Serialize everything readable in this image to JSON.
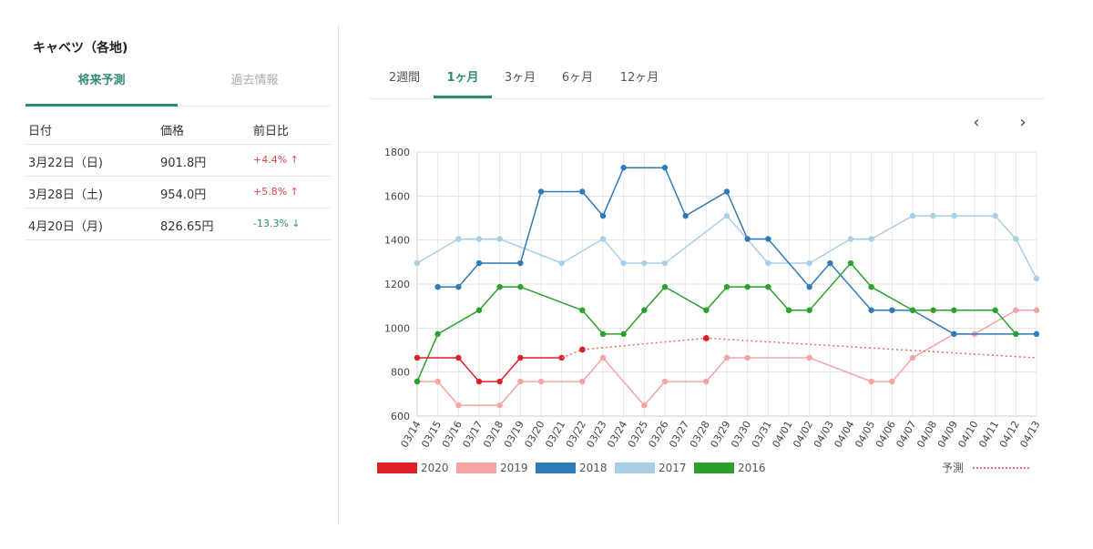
{
  "panel": {
    "title": "キャベツ（各地)",
    "tabs": [
      {
        "label": "将来予測",
        "active": true
      },
      {
        "label": "過去情報",
        "active": false
      }
    ],
    "table": {
      "headers": [
        "日付",
        "価格",
        "前日比"
      ],
      "rows": [
        {
          "date": "3月22日（日)",
          "price": "901.8円",
          "change": "+4.4%",
          "direction": "up"
        },
        {
          "date": "3月28日（土)",
          "price": "954.0円",
          "change": "+5.8%",
          "direction": "up"
        },
        {
          "date": "4月20日（月)",
          "price": "826.65円",
          "change": "-13.3%",
          "direction": "down"
        }
      ]
    }
  },
  "range_tabs": [
    {
      "label": "2週間",
      "active": false
    },
    {
      "label": "1ヶ月",
      "active": true
    },
    {
      "label": "3ヶ月",
      "active": false
    },
    {
      "label": "6ヶ月",
      "active": false
    },
    {
      "label": "12ヶ月",
      "active": false
    }
  ],
  "nav": {
    "prev": "‹",
    "next": "›"
  },
  "colors": {
    "accent": "#2e8b74",
    "up": "#e0454b",
    "down": "#2e8b74"
  },
  "chart_data": {
    "type": "line",
    "x": [
      "03/14",
      "03/15",
      "03/16",
      "03/17",
      "03/18",
      "03/19",
      "03/20",
      "03/21",
      "03/22",
      "03/23",
      "03/24",
      "03/25",
      "03/26",
      "03/27",
      "03/28",
      "03/29",
      "03/30",
      "03/31",
      "04/01",
      "04/02",
      "04/03",
      "04/04",
      "04/05",
      "04/06",
      "04/07",
      "04/08",
      "04/09",
      "04/10",
      "04/11",
      "04/12",
      "04/13"
    ],
    "ylim": [
      600,
      1800
    ],
    "yticks": [
      600,
      800,
      1000,
      1200,
      1400,
      1600,
      1800
    ],
    "grid": true,
    "legend": "bottom",
    "series": [
      {
        "name": "2017",
        "color": "#a9cfe6",
        "dots": true,
        "values": [
          1295,
          null,
          1405,
          1405,
          1405,
          null,
          null,
          1295,
          null,
          1405,
          1295,
          1295,
          1295,
          null,
          null,
          1510,
          null,
          1295,
          null,
          1295,
          null,
          1405,
          1405,
          null,
          1510,
          1510,
          1510,
          null,
          1510,
          1405,
          1225
        ]
      },
      {
        "name": "2019",
        "color": "#f5a3a3",
        "dots": true,
        "values": [
          757,
          757,
          649,
          null,
          649,
          757,
          757,
          null,
          757,
          865,
          null,
          649,
          757,
          null,
          757,
          865,
          865,
          null,
          null,
          865,
          null,
          null,
          757,
          757,
          865,
          null,
          973,
          973,
          null,
          1081,
          1081
        ]
      },
      {
        "name": "2018",
        "color": "#2f7ab8",
        "dots": true,
        "values": [
          null,
          1187,
          1187,
          1295,
          null,
          1295,
          1620,
          null,
          1620,
          1510,
          1729,
          null,
          1729,
          1510,
          null,
          1620,
          1405,
          1405,
          null,
          1187,
          1295,
          null,
          1081,
          1081,
          1081,
          null,
          973,
          null,
          null,
          973,
          973
        ]
      },
      {
        "name": "2016",
        "color": "#2ca02c",
        "dots": true,
        "values": [
          757,
          973,
          null,
          1081,
          1187,
          1187,
          null,
          null,
          1081,
          973,
          973,
          1081,
          1187,
          null,
          1081,
          1187,
          1187,
          1187,
          1081,
          1081,
          null,
          1295,
          1187,
          null,
          1081,
          1081,
          1081,
          null,
          1081,
          973,
          null
        ]
      },
      {
        "name": "2020",
        "color": "#dd1f26",
        "dots": true,
        "values": [
          865,
          null,
          865,
          757,
          757,
          865,
          null,
          865,
          null,
          null,
          null,
          null,
          null,
          null,
          null,
          null,
          null,
          null,
          null,
          null,
          null,
          null,
          null,
          null,
          null,
          null,
          null,
          null,
          null,
          null,
          null
        ]
      },
      {
        "name": "予測",
        "color": "#ee6b6b",
        "dots": false,
        "dashed": true,
        "values": [
          null,
          null,
          null,
          null,
          null,
          null,
          null,
          865,
          902,
          null,
          null,
          null,
          null,
          null,
          954,
          null,
          null,
          null,
          null,
          null,
          null,
          null,
          null,
          null,
          null,
          null,
          null,
          null,
          null,
          null,
          865
        ]
      }
    ],
    "highlight_points": [
      {
        "x": "03/22",
        "y": 902,
        "color": "#dd1f26"
      },
      {
        "x": "03/28",
        "y": 954,
        "color": "#dd1f26"
      }
    ],
    "legend_items": [
      {
        "name": "2020",
        "color": "#dd1f26",
        "style": "box"
      },
      {
        "name": "2019",
        "color": "#f5a3a3",
        "style": "box"
      },
      {
        "name": "2018",
        "color": "#2f7ab8",
        "style": "box"
      },
      {
        "name": "2017",
        "color": "#a9cfe6",
        "style": "box"
      },
      {
        "name": "2016",
        "color": "#2ca02c",
        "style": "box"
      },
      {
        "name": "予測",
        "color": "#ee6b6b",
        "style": "dashed"
      }
    ]
  }
}
